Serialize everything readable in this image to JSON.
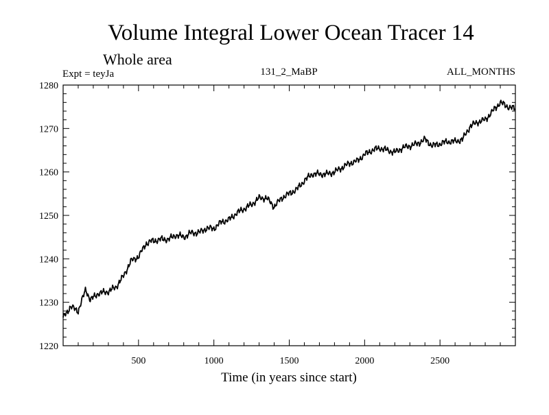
{
  "chart_data": {
    "type": "line",
    "title": "Volume Integral Lower Ocean Tracer 14",
    "subtitle": "Whole area",
    "experiment": "Expt = teyJa",
    "run": "131_2_MaBP",
    "period": "ALL_MONTHS",
    "xlabel": "Time (in years since start)",
    "ylabel": "",
    "xlim": [
      0,
      3000
    ],
    "ylim": [
      1220,
      1280
    ],
    "x_ticks": [
      500,
      1000,
      1500,
      2000,
      2500
    ],
    "x_tick_labels": [
      "500",
      "1000",
      "1500",
      "2000",
      "2500"
    ],
    "y_ticks": [
      1220,
      1230,
      1240,
      1250,
      1260,
      1270,
      1280
    ],
    "y_tick_labels": [
      "1220",
      "1230",
      "1240",
      "1250",
      "1260",
      "1270",
      "1280"
    ],
    "grid": false,
    "series": [
      {
        "name": "Volume Integral Lower Ocean Tracer 14",
        "x": [
          0,
          50,
          100,
          150,
          180,
          230,
          300,
          350,
          400,
          450,
          500,
          550,
          580,
          650,
          700,
          750,
          800,
          850,
          900,
          950,
          1000,
          1050,
          1100,
          1150,
          1200,
          1250,
          1300,
          1350,
          1400,
          1450,
          1500,
          1550,
          1600,
          1650,
          1700,
          1750,
          1800,
          1850,
          1900,
          1950,
          2000,
          2050,
          2100,
          2150,
          2200,
          2250,
          2300,
          2350,
          2400,
          2450,
          2500,
          2550,
          2600,
          2650,
          2700,
          2750,
          2800,
          2850,
          2900,
          2950,
          3000
        ],
        "values": [
          1226.5,
          1229,
          1228,
          1233,
          1230.5,
          1232,
          1232.5,
          1233.5,
          1236,
          1239.5,
          1240.5,
          1243.5,
          1244,
          1244.5,
          1244.5,
          1245.5,
          1245,
          1246,
          1246,
          1247,
          1247,
          1248.5,
          1249,
          1250.5,
          1251.5,
          1252.5,
          1254,
          1254,
          1252,
          1254,
          1255,
          1256,
          1258,
          1259.5,
          1259.5,
          1259.5,
          1260,
          1261,
          1262,
          1262.5,
          1264,
          1265,
          1265.5,
          1265,
          1264.5,
          1265.5,
          1266,
          1266.5,
          1267.5,
          1266,
          1266.5,
          1267,
          1267,
          1267.5,
          1270.5,
          1271.5,
          1272,
          1274,
          1276,
          1275,
          1274.5
        ]
      }
    ],
    "colors": {
      "line": "#000000",
      "axes": "#000000",
      "background": "#ffffff"
    }
  }
}
